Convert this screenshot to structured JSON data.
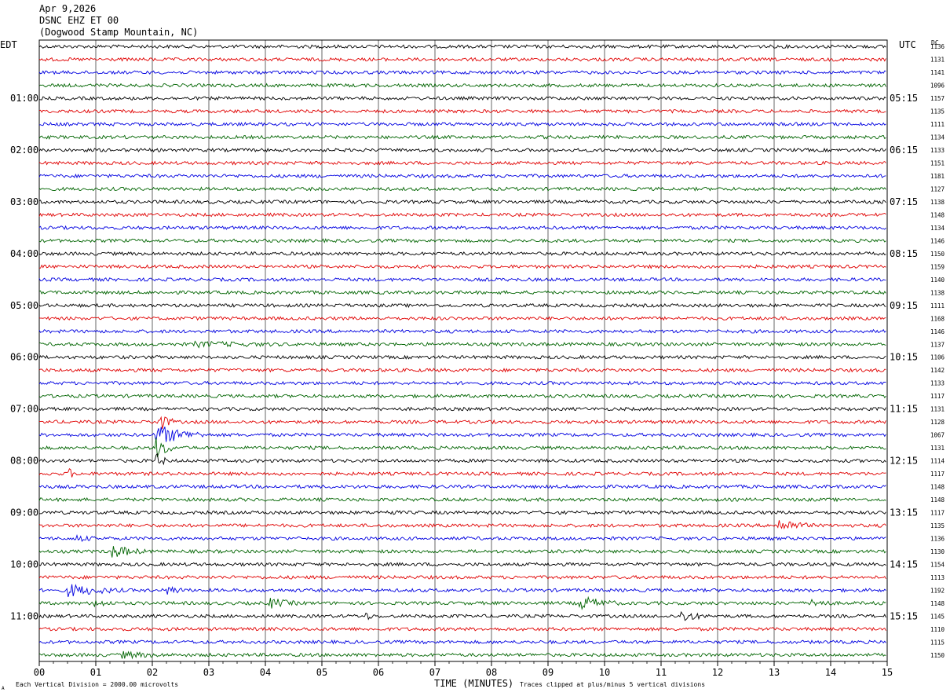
{
  "header": {
    "date": "Apr 9,2026",
    "station": "DSNC EHZ ET 00",
    "location": "(Dogwood Stamp Mountain, NC)"
  },
  "axis_labels": {
    "left_zone": "EDT",
    "right_zone": "UTC",
    "dc_header": "DC",
    "x_title": "TIME (MINUTES)"
  },
  "footer": {
    "left_note": "Each Vertical Division = 2000.00 microvolts",
    "right_note": "Traces clipped at plus/minus 5 vertical divisions",
    "corner_mark": "A"
  },
  "colors": {
    "trace_cycle": [
      "#000000",
      "#e00000",
      "#0000e0",
      "#006400"
    ],
    "grid": "#000000",
    "background": "#ffffff"
  },
  "chart_data": {
    "type": "line",
    "title": "DSNC EHZ ET 00",
    "subtitle": "(Dogwood Stamp Mountain, NC)",
    "xlabel": "TIME (MINUTES)",
    "xlim": [
      0,
      15
    ],
    "x_ticks": [
      "00",
      "01",
      "02",
      "03",
      "04",
      "05",
      "06",
      "07",
      "08",
      "09",
      "10",
      "11",
      "12",
      "13",
      "14",
      "15"
    ],
    "rows": 48,
    "minutes_per_row": 15,
    "grid": true,
    "left_hour_labels": [
      {
        "row": 4,
        "label": "01:00"
      },
      {
        "row": 8,
        "label": "02:00"
      },
      {
        "row": 12,
        "label": "03:00"
      },
      {
        "row": 16,
        "label": "04:00"
      },
      {
        "row": 20,
        "label": "05:00"
      },
      {
        "row": 24,
        "label": "06:00"
      },
      {
        "row": 28,
        "label": "07:00"
      },
      {
        "row": 32,
        "label": "08:00"
      },
      {
        "row": 36,
        "label": "09:00"
      },
      {
        "row": 40,
        "label": "10:00"
      },
      {
        "row": 44,
        "label": "11:00"
      }
    ],
    "right_hour_labels": [
      {
        "row": 4,
        "label": "05:15"
      },
      {
        "row": 8,
        "label": "06:15"
      },
      {
        "row": 12,
        "label": "07:15"
      },
      {
        "row": 16,
        "label": "08:15"
      },
      {
        "row": 20,
        "label": "09:15"
      },
      {
        "row": 24,
        "label": "10:15"
      },
      {
        "row": 28,
        "label": "11:15"
      },
      {
        "row": 32,
        "label": "12:15"
      },
      {
        "row": 36,
        "label": "13:15"
      },
      {
        "row": 40,
        "label": "14:15"
      },
      {
        "row": 44,
        "label": "15:15"
      }
    ],
    "dc_offsets": [
      1136,
      1131,
      1141,
      1096,
      1157,
      1135,
      1111,
      1134,
      1133,
      1151,
      1181,
      1127,
      1138,
      1148,
      1134,
      1146,
      1150,
      1159,
      1140,
      1138,
      1111,
      1168,
      1146,
      1137,
      1106,
      1142,
      1133,
      1117,
      1131,
      1128,
      1067,
      1131,
      1114,
      1117,
      1148,
      1148,
      1117,
      1135,
      1136,
      1130,
      1154,
      1113,
      1192,
      1148,
      1145,
      1110,
      1115,
      1150
    ],
    "events": [
      {
        "row": 23,
        "minute": 2.8,
        "width": 2.5,
        "amp": 1.6
      },
      {
        "row": 29,
        "minute": 2.1,
        "width": 0.3,
        "amp": 6
      },
      {
        "row": 30,
        "minute": 2.1,
        "width": 0.8,
        "amp": 6
      },
      {
        "row": 31,
        "minute": 2.1,
        "width": 0.3,
        "amp": 6
      },
      {
        "row": 32,
        "minute": 2.1,
        "width": 0.2,
        "amp": 4
      },
      {
        "row": 33,
        "minute": 0.55,
        "width": 0.1,
        "amp": 3
      },
      {
        "row": 36,
        "minute": 6.2,
        "width": 0.3,
        "amp": 1.5
      },
      {
        "row": 37,
        "minute": 13.1,
        "width": 0.6,
        "amp": 4
      },
      {
        "row": 38,
        "minute": 0.7,
        "width": 0.4,
        "amp": 2
      },
      {
        "row": 39,
        "minute": 1.3,
        "width": 0.6,
        "amp": 4
      },
      {
        "row": 42,
        "minute": 0.5,
        "width": 1.0,
        "amp": 4
      },
      {
        "row": 42,
        "minute": 2.3,
        "width": 0.4,
        "amp": 2.5
      },
      {
        "row": 43,
        "minute": 1.0,
        "width": 0.4,
        "amp": 2.5
      },
      {
        "row": 43,
        "minute": 4.1,
        "width": 0.6,
        "amp": 3
      },
      {
        "row": 43,
        "minute": 9.6,
        "width": 0.7,
        "amp": 4
      },
      {
        "row": 43,
        "minute": 13.7,
        "width": 0.4,
        "amp": 3
      },
      {
        "row": 44,
        "minute": 11.4,
        "width": 0.4,
        "amp": 3.5
      },
      {
        "row": 44,
        "minute": 5.8,
        "width": 0.2,
        "amp": 2
      },
      {
        "row": 47,
        "minute": 1.5,
        "width": 1.0,
        "amp": 2
      }
    ]
  }
}
